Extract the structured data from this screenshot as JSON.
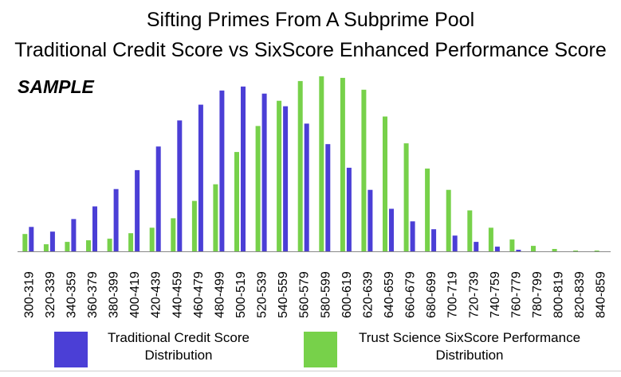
{
  "chart_data": {
    "type": "bar",
    "title": "Sifting Primes From A Subprime Pool",
    "subtitle": "Traditional Credit Score vs SixScore Enhanced Performance Score",
    "watermark": "SAMPLE",
    "categories": [
      "300-319",
      "320-339",
      "340-359",
      "360-379",
      "380-399",
      "400-419",
      "420-439",
      "440-459",
      "460-479",
      "480-499",
      "500-519",
      "520-539",
      "540-559",
      "560-579",
      "580-599",
      "600-619",
      "620-639",
      "640-659",
      "660-679",
      "680-699",
      "700-719",
      "720-739",
      "740-759",
      "760-779",
      "780-799",
      "800-819",
      "820-839",
      "840-859"
    ],
    "series": [
      {
        "name": "Traditional Credit Score Distribution",
        "color": "#4b3fd6",
        "values": [
          31,
          25,
          41,
          57,
          79,
          103,
          133,
          166,
          186,
          204,
          209,
          200,
          184,
          162,
          136,
          106,
          78,
          54,
          38,
          28,
          20,
          12,
          6,
          2,
          0,
          0,
          0,
          0
        ]
      },
      {
        "name": "Trust Science SixScore Performance Distribution",
        "color": "#77d14a",
        "values": [
          22,
          9,
          12,
          14,
          16,
          23,
          30,
          42,
          64,
          85,
          126,
          159,
          191,
          216,
          222,
          220,
          205,
          171,
          137,
          105,
          78,
          52,
          30,
          15,
          7,
          3,
          1,
          1
        ]
      }
    ],
    "ylim": [
      0,
      230
    ],
    "grid": false,
    "legend": "bottom"
  }
}
